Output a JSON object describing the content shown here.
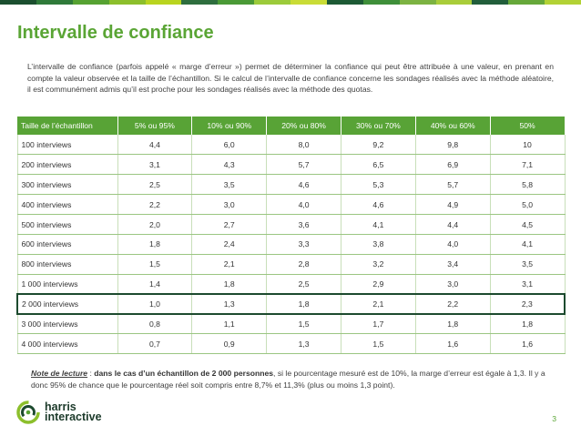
{
  "header": {
    "bar_colors": [
      "#1b4f2f",
      "#2f7a3a",
      "#56a232",
      "#8cbf2c",
      "#b9d41f",
      "#2e6e3e",
      "#4a9a36",
      "#9ccb3b",
      "#c9dc36",
      "#1d5a35",
      "#3f8f3a",
      "#7cb342",
      "#a9cd3a",
      "#215e3b",
      "#66a83a",
      "#b2d235"
    ]
  },
  "title": "Intervalle de confiance",
  "intro": "L’intervalle de confiance (parfois appelé « marge d’erreur ») permet de déterminer la confiance qui peut être attribuée à une valeur, en prenant en compte la valeur observée et la taille de l’échantillon. Si le calcul de l’intervalle de confiance concerne les sondages réalisés avec la méthode aléatoire, il est communément admis qu’il est proche pour les sondages réalisés avec la méthode des quotas.",
  "table": {
    "headers": [
      "Taille de l’échantillon",
      "5% ou 95%",
      "10% ou 90%",
      "20% ou 80%",
      "30% ou 70%",
      "40% ou 60%",
      "50%"
    ],
    "rows": [
      [
        "100 interviews",
        "4,4",
        "6,0",
        "8,0",
        "9,2",
        "9,8",
        "10"
      ],
      [
        "200 interviews",
        "3,1",
        "4,3",
        "5,7",
        "6,5",
        "6,9",
        "7,1"
      ],
      [
        "300 interviews",
        "2,5",
        "3,5",
        "4,6",
        "5,3",
        "5,7",
        "5,8"
      ],
      [
        "400 interviews",
        "2,2",
        "3,0",
        "4,0",
        "4,6",
        "4,9",
        "5,0"
      ],
      [
        "500 interviews",
        "2,0",
        "2,7",
        "3,6",
        "4,1",
        "4,4",
        "4,5"
      ],
      [
        "600 interviews",
        "1,8",
        "2,4",
        "3,3",
        "3,8",
        "4,0",
        "4,1"
      ],
      [
        "800 interviews",
        "1,5",
        "2,1",
        "2,8",
        "3,2",
        "3,4",
        "3,5"
      ],
      [
        "1 000 interviews",
        "1,4",
        "1,8",
        "2,5",
        "2,9",
        "3,0",
        "3,1"
      ],
      [
        "2 000 interviews",
        "1,0",
        "1,3",
        "1,8",
        "2,1",
        "2,2",
        "2,3"
      ],
      [
        "3 000 interviews",
        "0,8",
        "1,1",
        "1,5",
        "1,7",
        "1,8",
        "1,8"
      ],
      [
        "4 000 interviews",
        "0,7",
        "0,9",
        "1,3",
        "1,5",
        "1,6",
        "1,6"
      ]
    ],
    "highlighted_row": "2 000 interviews",
    "header_color": "#58a336",
    "highlight_color": "#1c4a2e"
  },
  "note": {
    "label": "Note de lecture",
    "sep": " : ",
    "bold": "dans le cas d’un échantillon de 2 000 personnes",
    "rest": ", si le pourcentage mesuré est de 10%, la marge d’erreur est égale à 1,3. Il y a donc 95% de chance que le pourcentage réel soit compris entre 8,7% et 11,3% (plus ou moins 1,3 point)."
  },
  "logo": {
    "line1": "harris",
    "line2": "interactive",
    "icon": "harris-swirl-icon"
  },
  "page_number": "3"
}
